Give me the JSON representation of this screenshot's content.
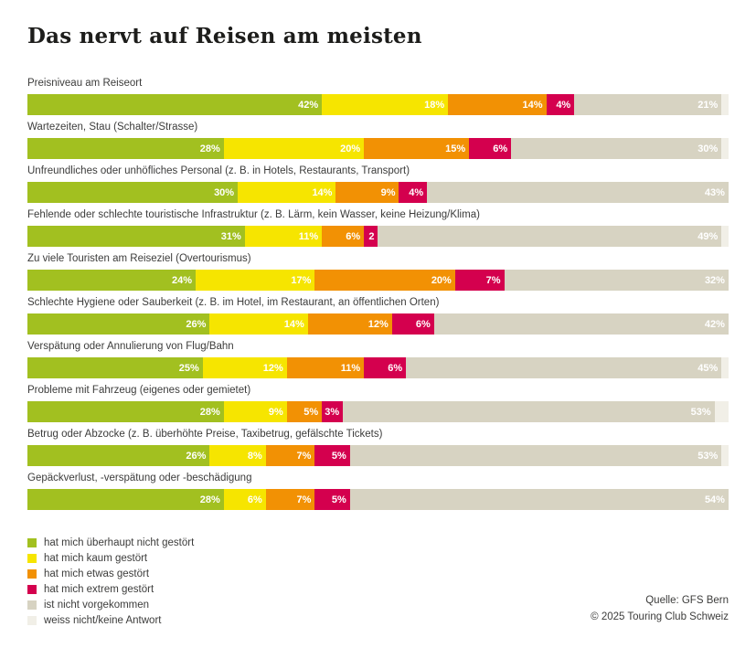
{
  "title": "Das nervt auf Reisen am meisten",
  "chart_data": {
    "type": "bar",
    "stacked": true,
    "orientation": "horizontal",
    "xlim": [
      0,
      100
    ],
    "grid": false,
    "legend_position": "bottom-left",
    "categories": [
      "Preisniveau am Reiseort",
      "Wartezeiten, Stau (Schalter/Strasse)",
      "Unfreundliches oder unhöfliches Personal (z. B. in Hotels, Restaurants, Transport)",
      "Fehlende oder schlechte touristische Infrastruktur (z. B. Lärm, kein Wasser, keine Heizung/Klima)",
      "Zu viele Touristen am Reiseziel (Overtourismus)",
      "Schlechte Hygiene oder Sauberkeit (z. B. im Hotel, im Restaurant, an öffentlichen Orten)",
      "Verspätung oder Annulierung von Flug/Bahn",
      "Probleme mit Fahrzeug (eigenes oder gemietet)",
      "Betrug oder Abzocke (z. B. überhöhte Preise, Taxibetrug, gefälschte Tickets)",
      "Gepäckverlust, -verspätung oder -beschädigung"
    ],
    "series": [
      {
        "name": "hat mich überhaupt nicht gestört",
        "color": "#a2c020",
        "values": [
          42,
          28,
          30,
          31,
          24,
          26,
          25,
          28,
          26,
          28
        ],
        "labels": [
          "42%",
          "28%",
          "30%",
          "31%",
          "24%",
          "26%",
          "25%",
          "28%",
          "26%",
          "28%"
        ]
      },
      {
        "name": "hat mich kaum gestört",
        "color": "#f6e500",
        "values": [
          18,
          20,
          14,
          11,
          17,
          14,
          12,
          9,
          8,
          6
        ],
        "labels": [
          "18%",
          "20%",
          "14%",
          "11%",
          "17%",
          "14%",
          "12%",
          "9%",
          "8%",
          "6%"
        ]
      },
      {
        "name": "hat mich etwas gestört",
        "color": "#f29104",
        "values": [
          14,
          15,
          9,
          6,
          20,
          12,
          11,
          5,
          7,
          7
        ],
        "labels": [
          "14%",
          "15%",
          "9%",
          "6%",
          "20%",
          "12%",
          "11%",
          "5%",
          "7%",
          "7%"
        ]
      },
      {
        "name": "hat mich extrem gestört",
        "color": "#d4004e",
        "values": [
          4,
          6,
          4,
          2,
          7,
          6,
          6,
          3,
          5,
          5
        ],
        "labels": [
          "4%",
          "6%",
          "4%",
          "2",
          "7%",
          "6%",
          "6%",
          "3%",
          "5%",
          "5%"
        ]
      },
      {
        "name": "ist nicht vorgekommen",
        "color": "#d7d3c2",
        "values": [
          21,
          30,
          43,
          49,
          32,
          42,
          45,
          53,
          53,
          54
        ],
        "labels": [
          "21%",
          "30%",
          "43%",
          "49%",
          "32%",
          "42%",
          "45%",
          "53%",
          "53%",
          "54%"
        ]
      },
      {
        "name": "weiss nicht/keine Antwort",
        "color": "#f1efe7",
        "values": [
          1,
          1,
          0,
          1,
          0,
          0,
          1,
          2,
          1,
          0
        ],
        "labels": [
          "",
          "",
          "",
          "",
          "",
          "",
          "",
          "",
          "",
          ""
        ]
      }
    ]
  },
  "footer": {
    "source": "Quelle: GFS Bern",
    "copyright": "© 2025 Touring Club Schweiz"
  }
}
